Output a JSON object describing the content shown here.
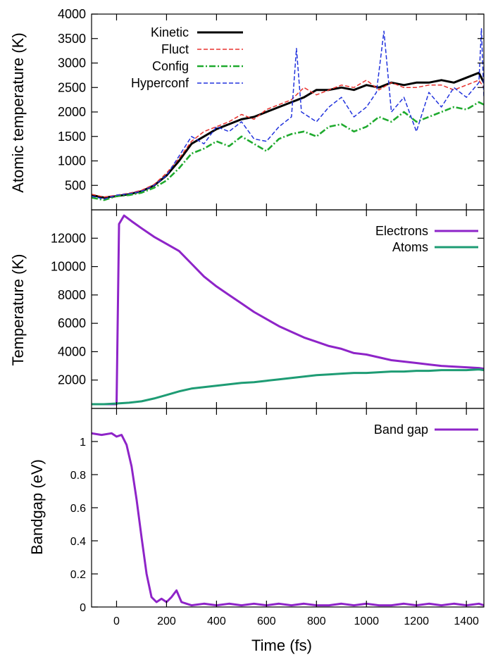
{
  "chart_data": [
    {
      "type": "line",
      "title": "",
      "xlabel": "",
      "ylabel": "Atomic temperature (K)",
      "xlim": [
        -100,
        1470
      ],
      "ylim": [
        0,
        4000
      ],
      "yticks": [
        500,
        1000,
        1500,
        2000,
        2500,
        3000,
        3500,
        4000
      ],
      "legend": "top-left",
      "grid": false,
      "series": [
        {
          "name": "Kinetic",
          "color": "#000000",
          "style": "solid",
          "x": [
            -100,
            -50,
            0,
            50,
            100,
            150,
            200,
            250,
            300,
            350,
            400,
            450,
            500,
            550,
            600,
            650,
            700,
            750,
            800,
            850,
            900,
            950,
            1000,
            1050,
            1100,
            1150,
            1200,
            1250,
            1300,
            1350,
            1400,
            1450,
            1470
          ],
          "y": [
            300,
            250,
            280,
            320,
            380,
            500,
            700,
            1000,
            1350,
            1500,
            1650,
            1750,
            1850,
            1900,
            2000,
            2100,
            2200,
            2300,
            2450,
            2450,
            2500,
            2450,
            2550,
            2500,
            2600,
            2550,
            2600,
            2600,
            2650,
            2600,
            2700,
            2800,
            2600
          ]
        },
        {
          "name": "Fluct",
          "color": "#e8322e",
          "style": "dashed",
          "x": [
            -100,
            -50,
            0,
            50,
            100,
            150,
            200,
            250,
            300,
            350,
            400,
            450,
            500,
            550,
            600,
            650,
            700,
            750,
            800,
            850,
            900,
            950,
            1000,
            1050,
            1100,
            1150,
            1200,
            1250,
            1300,
            1350,
            1400,
            1450,
            1470
          ],
          "y": [
            320,
            260,
            300,
            340,
            400,
            520,
            750,
            1050,
            1400,
            1600,
            1700,
            1800,
            1950,
            1850,
            2050,
            2150,
            2250,
            2500,
            2350,
            2450,
            2550,
            2500,
            2650,
            2450,
            2600,
            2500,
            2500,
            2550,
            2550,
            2450,
            2550,
            2650,
            2500
          ]
        },
        {
          "name": "Config",
          "color": "#1faa2e",
          "style": "dashdot",
          "x": [
            -100,
            -50,
            0,
            50,
            100,
            150,
            200,
            250,
            300,
            350,
            400,
            450,
            500,
            550,
            600,
            650,
            700,
            750,
            800,
            850,
            900,
            950,
            1000,
            1050,
            1100,
            1150,
            1200,
            1250,
            1300,
            1350,
            1400,
            1450,
            1470
          ],
          "y": [
            250,
            200,
            280,
            300,
            350,
            450,
            600,
            850,
            1150,
            1250,
            1400,
            1300,
            1500,
            1350,
            1200,
            1450,
            1550,
            1600,
            1500,
            1700,
            1750,
            1600,
            1700,
            1900,
            1800,
            2000,
            1800,
            1900,
            2000,
            2100,
            2050,
            2200,
            2150
          ]
        },
        {
          "name": "Hyperconf",
          "color": "#2233dd",
          "style": "dashed",
          "x": [
            -100,
            -50,
            0,
            50,
            100,
            150,
            200,
            250,
            300,
            350,
            400,
            450,
            500,
            550,
            600,
            650,
            700,
            720,
            740,
            800,
            850,
            900,
            950,
            1000,
            1040,
            1070,
            1100,
            1150,
            1200,
            1250,
            1300,
            1350,
            1400,
            1450,
            1460,
            1470
          ],
          "y": [
            280,
            220,
            300,
            330,
            380,
            500,
            700,
            1100,
            1500,
            1350,
            1700,
            1600,
            1800,
            1450,
            1400,
            1700,
            1900,
            3300,
            2000,
            1800,
            2100,
            2300,
            1900,
            2100,
            2400,
            3650,
            2000,
            2300,
            1600,
            2400,
            2100,
            2500,
            2300,
            2600,
            3700,
            2300
          ]
        }
      ]
    },
    {
      "type": "line",
      "title": "",
      "xlabel": "",
      "ylabel": "Temperature (K)",
      "xlim": [
        -100,
        1470
      ],
      "ylim": [
        0,
        14000
      ],
      "yticks": [
        2000,
        4000,
        6000,
        8000,
        10000,
        12000
      ],
      "legend": "top-right",
      "grid": false,
      "series": [
        {
          "name": "Electrons",
          "color": "#8e24c8",
          "style": "solid",
          "x": [
            -100,
            0,
            10,
            30,
            60,
            100,
            150,
            200,
            250,
            300,
            350,
            400,
            450,
            500,
            550,
            600,
            650,
            700,
            750,
            800,
            850,
            900,
            950,
            1000,
            1050,
            1100,
            1150,
            1200,
            1250,
            1300,
            1350,
            1400,
            1450,
            1470
          ],
          "y": [
            300,
            300,
            13000,
            13600,
            13200,
            12700,
            12100,
            11600,
            11100,
            10200,
            9300,
            8600,
            8000,
            7400,
            6800,
            6300,
            5800,
            5400,
            5000,
            4700,
            4400,
            4200,
            3900,
            3800,
            3600,
            3400,
            3300,
            3200,
            3100,
            3000,
            2950,
            2900,
            2850,
            2800
          ]
        },
        {
          "name": "Atoms",
          "color": "#1e9c74",
          "style": "solid",
          "x": [
            -100,
            -50,
            0,
            50,
            100,
            150,
            200,
            250,
            300,
            350,
            400,
            450,
            500,
            550,
            600,
            650,
            700,
            750,
            800,
            850,
            900,
            950,
            1000,
            1050,
            1100,
            1150,
            1200,
            1250,
            1300,
            1350,
            1400,
            1450,
            1470
          ],
          "y": [
            300,
            300,
            350,
            400,
            500,
            700,
            950,
            1200,
            1400,
            1500,
            1600,
            1700,
            1800,
            1850,
            1950,
            2050,
            2150,
            2250,
            2350,
            2400,
            2450,
            2500,
            2500,
            2550,
            2600,
            2600,
            2650,
            2650,
            2700,
            2700,
            2700,
            2750,
            2700
          ]
        }
      ]
    },
    {
      "type": "line",
      "title": "",
      "xlabel": "Time (fs)",
      "ylabel": "Bandgap (eV)",
      "xlim": [
        -100,
        1470
      ],
      "ylim": [
        0,
        1.2
      ],
      "yticks": [
        0,
        0.2,
        0.4,
        0.6,
        0.8,
        1
      ],
      "xticks": [
        0,
        200,
        400,
        600,
        800,
        1000,
        1200,
        1400
      ],
      "legend": "top-right",
      "grid": false,
      "series": [
        {
          "name": "Band gap",
          "color": "#8e24c8",
          "style": "solid",
          "x": [
            -100,
            -60,
            -20,
            0,
            20,
            40,
            60,
            80,
            100,
            120,
            140,
            160,
            180,
            200,
            220,
            240,
            260,
            280,
            300,
            350,
            400,
            450,
            500,
            550,
            600,
            650,
            700,
            750,
            800,
            850,
            900,
            950,
            1000,
            1050,
            1100,
            1150,
            1200,
            1250,
            1300,
            1350,
            1400,
            1450,
            1470
          ],
          "y": [
            1.05,
            1.04,
            1.05,
            1.03,
            1.04,
            0.98,
            0.85,
            0.65,
            0.42,
            0.2,
            0.06,
            0.03,
            0.05,
            0.03,
            0.06,
            0.1,
            0.03,
            0.02,
            0.01,
            0.02,
            0.01,
            0.02,
            0.01,
            0.02,
            0.01,
            0.02,
            0.01,
            0.02,
            0.01,
            0.01,
            0.02,
            0.01,
            0.02,
            0.01,
            0.01,
            0.02,
            0.01,
            0.02,
            0.01,
            0.02,
            0.01,
            0.02,
            0.01
          ]
        }
      ]
    }
  ]
}
